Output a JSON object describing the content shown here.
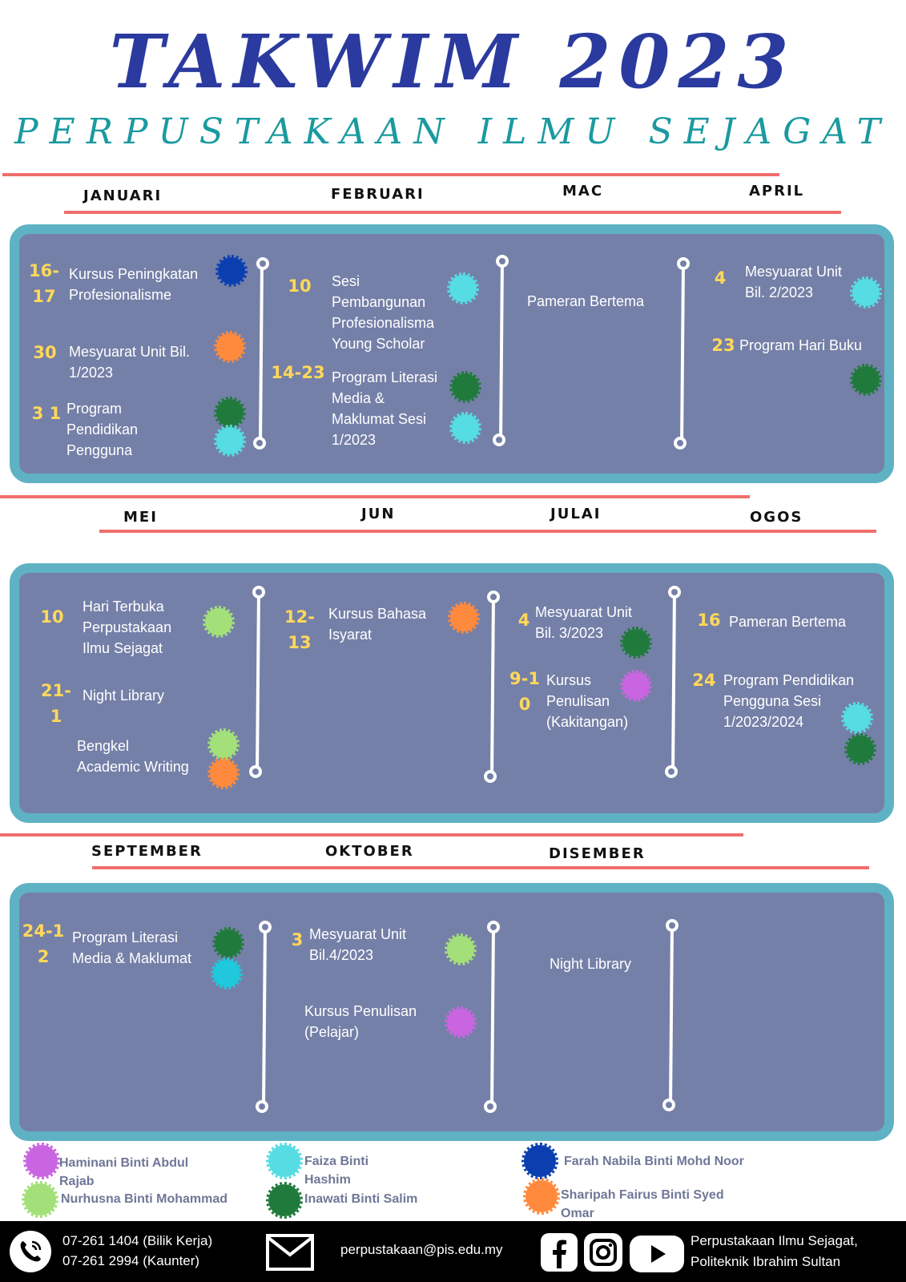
{
  "header": {
    "title": "TAKWIM 2023",
    "subtitle": "PERPUSTAKAAN ILMU SEJAGAT"
  },
  "months": {
    "jan": "JANUARI",
    "feb": "FEBRUARI",
    "mac": "MAC",
    "apr": "APRIL",
    "mei": "MEI",
    "jun": "JUN",
    "jul": "JULAI",
    "ogos": "OGOS",
    "sep": "SEPTEMBER",
    "okt": "OKTOBER",
    "dis": "DISEMBER"
  },
  "events": {
    "jan": [
      {
        "date": "16-\n17",
        "text": "Kursus Peningkatan\nProfesionalisme"
      },
      {
        "date": "30",
        "text": "Mesyuarat Unit Bil.\n1/2023"
      },
      {
        "date": "3 1",
        "text": "Program\nPendidikan\nPengguna"
      }
    ],
    "feb": [
      {
        "date": "10",
        "text": "Sesi\nPembangunan\nProfesionalisma\nYoung Scholar"
      },
      {
        "date": "14-23",
        "text": "Program Literasi\nMedia  &\nMaklumat Sesi\n1/2023"
      }
    ],
    "mac": [
      {
        "text": "Pameran Bertema"
      }
    ],
    "apr": [
      {
        "date": "4",
        "text": "Mesyuarat Unit\nBil. 2/2023"
      },
      {
        "date": "23",
        "text": "Program Hari Buku"
      }
    ],
    "mei": [
      {
        "date": "10",
        "text": "Hari Terbuka\nPerpustakaan\nIlmu Sejagat"
      },
      {
        "date": "21-\n1",
        "text": "Night Library"
      },
      {
        "text": "Bengkel\nAcademic Writing"
      }
    ],
    "jun": [
      {
        "date": "12-\n13",
        "text": "Kursus Bahasa\nIsyarat"
      }
    ],
    "jul": [
      {
        "date": "4",
        "text": "Mesyuarat Unit\nBil. 3/2023"
      },
      {
        "date": "9-1\n0",
        "text": "Kursus\nPenulisan\n(Kakitangan)"
      }
    ],
    "ogos": [
      {
        "date": "16",
        "text": "Pameran Bertema"
      },
      {
        "date": "24",
        "text": "Program Pendidikan\nPengguna Sesi\n1/2023/2024"
      }
    ],
    "sep": [
      {
        "date": "24-1\n2",
        "text": "Program Literasi\nMedia & Maklumat"
      }
    ],
    "okt": [
      {
        "date": "3",
        "text": "Mesyuarat Unit\nBil.4/2023"
      },
      {
        "text": "Kursus  Penulisan\n(Pelajar)"
      }
    ],
    "dis": [
      {
        "text": "Night Library"
      }
    ]
  },
  "colors": {
    "purple": "#c965e0",
    "cyan": "#56dde3",
    "blue": "#0b3fb0",
    "green": "#207a3c",
    "lightgreen": "#a4e07a",
    "orange": "#ff8a3d"
  },
  "legend": [
    {
      "color": "purple",
      "name": "Haminani Binti Abdul\n Rajab"
    },
    {
      "color": "lightgreen",
      "name": "Nurhusna Binti Mohammad"
    },
    {
      "color": "cyan",
      "name": "Faiza Binti\nHashim"
    },
    {
      "color": "green",
      "name": "Inawati Binti Salim"
    },
    {
      "color": "blue",
      "name": "Farah  Nabila Binti Mohd Noor"
    },
    {
      "color": "orange",
      "name": "Sharipah Fairus Binti Syed\nOmar"
    }
  ],
  "footer": {
    "phone1": "07-261 1404 (Bilik Kerja)",
    "phone2": "07-261 2994 (Kaunter)",
    "email": "perpustakaan@pis.edu.my",
    "org1": "Perpustakaan Ilmu Sejagat,",
    "org2": "Politeknik Ibrahim Sultan",
    "icons": [
      "phone-icon",
      "mail-icon",
      "facebook-icon",
      "instagram-icon",
      "youtube-icon"
    ]
  }
}
